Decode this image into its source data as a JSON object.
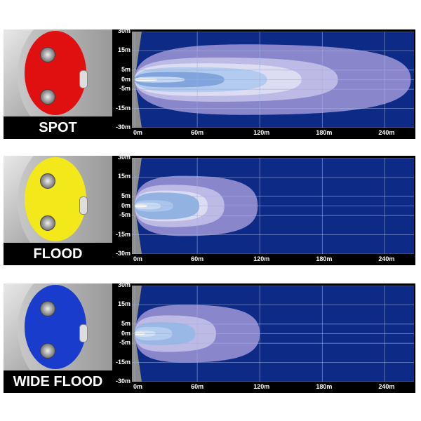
{
  "chart_data": [
    {
      "type": "area",
      "title": "SPOT",
      "disc_color": "#e01010",
      "yticks": [
        "30m",
        "15m",
        "5m",
        "0m",
        "-5m",
        "-15m",
        "-30m"
      ],
      "xticks": [
        "0m",
        "60m",
        "120m",
        "180m",
        "240m"
      ],
      "xlim": [
        0,
        268
      ],
      "ylim": [
        -30,
        30
      ],
      "grid": true,
      "beams": [
        {
          "reach_m": 265,
          "half_width_m": 20,
          "color": "#8a86cc"
        },
        {
          "reach_m": 195,
          "half_width_m": 11.5,
          "color": "#bdbbe6"
        },
        {
          "reach_m": 160,
          "half_width_m": 8.5,
          "color": "#dcdcf2"
        },
        {
          "reach_m": 127,
          "half_width_m": 6.5,
          "color": "#b2cbee"
        },
        {
          "reach_m": 86,
          "half_width_m": 4,
          "color": "#82a4dc"
        },
        {
          "reach_m": 48,
          "half_width_m": 1.5,
          "color": "#c4d8f4"
        },
        {
          "reach_m": 22,
          "half_width_m": 0.6,
          "color": "#ffffff"
        }
      ]
    },
    {
      "type": "area",
      "title": "FLOOD",
      "disc_color": "#f2e81a",
      "yticks": [
        "30m",
        "15m",
        "5m",
        "0m",
        "-5m",
        "-15m",
        "-30m"
      ],
      "xticks": [
        "0m",
        "60m",
        "120m",
        "180m",
        "240m"
      ],
      "xlim": [
        0,
        268
      ],
      "ylim": [
        -30,
        30
      ],
      "grid": true,
      "beams": [
        {
          "reach_m": 118,
          "half_width_m": 16,
          "color": "#8a86cc"
        },
        {
          "reach_m": 86,
          "half_width_m": 11,
          "color": "#bdbbe6"
        },
        {
          "reach_m": 70,
          "half_width_m": 8,
          "color": "#dcdcf2"
        },
        {
          "reach_m": 62,
          "half_width_m": 7,
          "color": "#92b2e2"
        },
        {
          "reach_m": 37,
          "half_width_m": 3,
          "color": "#aac4ec"
        },
        {
          "reach_m": 25,
          "half_width_m": 1.8,
          "color": "#c8daf4"
        },
        {
          "reach_m": 12,
          "half_width_m": 0.7,
          "color": "#ffffff"
        }
      ]
    },
    {
      "type": "area",
      "title": "WIDE FLOOD",
      "disc_color": "#1a3ccc",
      "yticks": [
        "30m",
        "15m",
        "5m",
        "0m",
        "-5m",
        "-15m",
        "-30m"
      ],
      "xticks": [
        "0m",
        "60m",
        "120m",
        "180m",
        "240m"
      ],
      "xlim": [
        0,
        268
      ],
      "ylim": [
        -30,
        30
      ],
      "grid": true,
      "beams": [
        {
          "reach_m": 120,
          "half_width_m": 15,
          "color": "#8a86cc"
        },
        {
          "reach_m": 78,
          "half_width_m": 9.5,
          "color": "#bdbbe6"
        },
        {
          "reach_m": 58,
          "half_width_m": 6,
          "color": "#9ab8e6"
        },
        {
          "reach_m": 36,
          "half_width_m": 3.5,
          "color": "#b4ccee"
        },
        {
          "reach_m": 20,
          "half_width_m": 1.6,
          "color": "#d0e0f6"
        },
        {
          "reach_m": 10,
          "half_width_m": 0.6,
          "color": "#ffffff"
        }
      ]
    }
  ],
  "colors": {
    "background": "#0c2a86",
    "grid": "#9fb0e0",
    "wedge": "#8c8c8c"
  }
}
